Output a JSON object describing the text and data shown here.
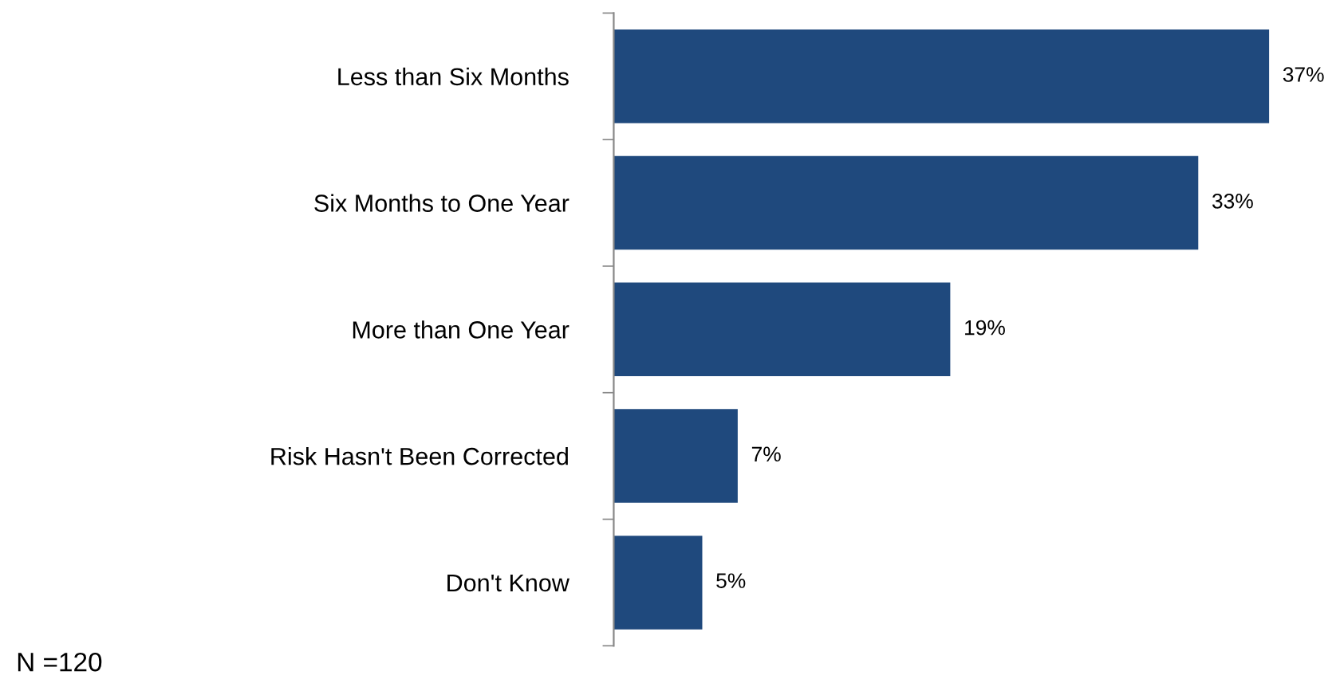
{
  "chart_data": {
    "type": "bar",
    "orientation": "horizontal",
    "categories": [
      "Less than Six Months",
      "Six Months to One Year",
      "More than One Year",
      "Risk Hasn't Been Corrected",
      "Don't Know"
    ],
    "values": [
      37,
      33,
      19,
      7,
      5
    ],
    "value_labels": [
      "37%",
      "33%",
      "19%",
      "7%",
      "5%"
    ],
    "color": "#1f497d",
    "grid": false,
    "legend": false,
    "annotations": [
      "N =120"
    ]
  }
}
